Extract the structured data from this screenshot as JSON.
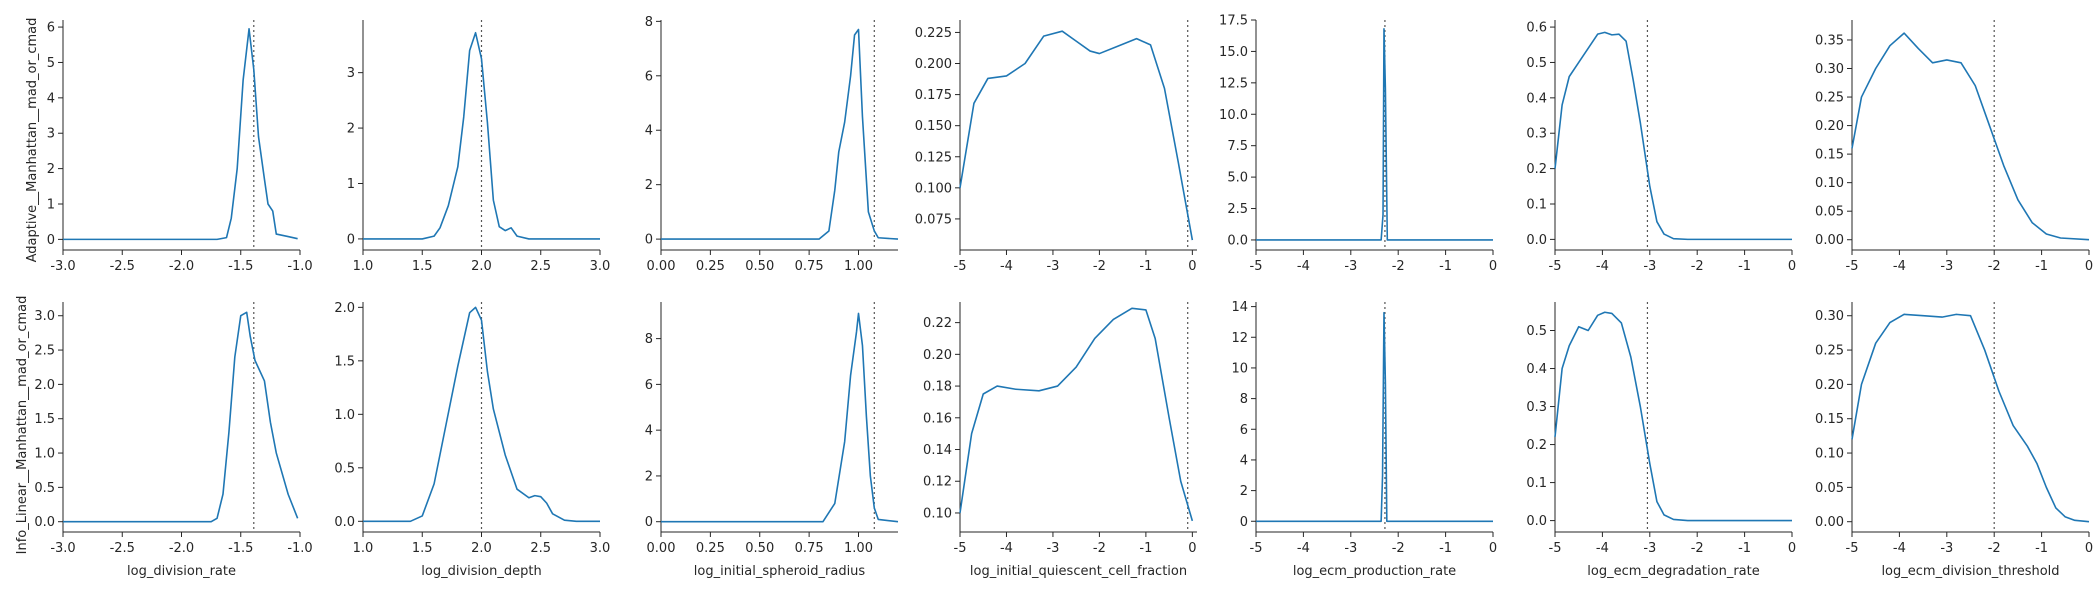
{
  "figure": {
    "line_color": "#1f77b4",
    "ref_line_color": "#555555",
    "row_labels": [
      "Adaptive__Manhattan__mad_or_cmad",
      "Info_Linear__Manhattan__mad_or_cmad"
    ]
  },
  "chart_data": [
    {
      "type": "line",
      "row": 0,
      "col": 0,
      "xlabel": "",
      "xlim": [
        -3,
        -1
      ],
      "ylim": [
        -0.3,
        6.2
      ],
      "xticks": [
        -3,
        -2.5,
        -2,
        -1.5,
        -1
      ],
      "xtick_labels": [
        "-3.0",
        "-2.5",
        "-2.0",
        "-1.5",
        "-1.0"
      ],
      "yticks": [
        0,
        1,
        2,
        3,
        4,
        5,
        6
      ],
      "ytick_labels": [
        "0",
        "1",
        "2",
        "3",
        "4",
        "5",
        "6"
      ],
      "ref_x": -1.39,
      "x": [
        -3,
        -1.7,
        -1.62,
        -1.58,
        -1.53,
        -1.48,
        -1.43,
        -1.39,
        -1.35,
        -1.3,
        -1.27,
        -1.23,
        -1.2,
        -1.1,
        -1.02
      ],
      "y": [
        0,
        0,
        0.05,
        0.6,
        2.0,
        4.5,
        5.95,
        4.8,
        2.9,
        1.7,
        1.0,
        0.8,
        0.15,
        0.08,
        0.02
      ]
    },
    {
      "type": "line",
      "row": 0,
      "col": 1,
      "xlabel": "",
      "xlim": [
        1,
        3
      ],
      "ylim": [
        -0.2,
        3.95
      ],
      "xticks": [
        1,
        1.5,
        2,
        2.5,
        3
      ],
      "xtick_labels": [
        "1.0",
        "1.5",
        "2.0",
        "2.5",
        "3.0"
      ],
      "yticks": [
        0,
        1,
        2,
        3
      ],
      "ytick_labels": [
        "0",
        "1",
        "2",
        "3"
      ],
      "ref_x": 2.0,
      "x": [
        1,
        1.5,
        1.6,
        1.65,
        1.72,
        1.8,
        1.85,
        1.9,
        1.95,
        2.0,
        2.05,
        2.1,
        2.15,
        2.2,
        2.25,
        2.3,
        2.4,
        3
      ],
      "y": [
        0,
        0,
        0.05,
        0.2,
        0.6,
        1.3,
        2.2,
        3.4,
        3.72,
        3.25,
        2.1,
        0.7,
        0.22,
        0.15,
        0.2,
        0.05,
        0,
        0
      ]
    },
    {
      "type": "line",
      "row": 0,
      "col": 2,
      "xlabel": "",
      "xlim": [
        0,
        1.2
      ],
      "ylim": [
        -0.4,
        8.05
      ],
      "xticks": [
        0,
        0.25,
        0.5,
        0.75,
        1,
        1.25
      ],
      "xtick_labels": [
        "0.00",
        "0.25",
        "0.50",
        "0.75",
        "1.00",
        ""
      ],
      "yticks": [
        0,
        2,
        4,
        6,
        8
      ],
      "ytick_labels": [
        "0",
        "2",
        "4",
        "6",
        "8"
      ],
      "ref_x": 1.08,
      "x": [
        0,
        0.8,
        0.85,
        0.88,
        0.9,
        0.93,
        0.96,
        0.98,
        1.0,
        1.02,
        1.05,
        1.08,
        1.1,
        1.2
      ],
      "y": [
        0,
        0,
        0.3,
        1.8,
        3.2,
        4.3,
        6.0,
        7.5,
        7.7,
        4.5,
        1.0,
        0.3,
        0.05,
        0
      ]
    },
    {
      "type": "line",
      "row": 0,
      "col": 3,
      "xlabel": "",
      "xlim": [
        -5,
        0.1
      ],
      "ylim": [
        0.05,
        0.235
      ],
      "xticks": [
        -5,
        -4,
        -3,
        -2,
        -1,
        0
      ],
      "xtick_labels": [
        "-5",
        "-4",
        "-3",
        "-2",
        "-1",
        "0"
      ],
      "yticks": [
        0.075,
        0.1,
        0.125,
        0.15,
        0.175,
        0.2,
        0.225
      ],
      "ytick_labels": [
        "0.075",
        "0.100",
        "0.125",
        "0.150",
        "0.175",
        "0.200",
        "0.225"
      ],
      "ref_x": -0.1,
      "x": [
        -5,
        -4.7,
        -4.4,
        -4,
        -3.6,
        -3.2,
        -2.8,
        -2.5,
        -2.2,
        -2,
        -1.6,
        -1.2,
        -0.9,
        -0.6,
        -0.3,
        0
      ],
      "y": [
        0.1,
        0.168,
        0.188,
        0.19,
        0.2,
        0.222,
        0.226,
        0.218,
        0.21,
        0.208,
        0.214,
        0.22,
        0.215,
        0.18,
        0.12,
        0.058
      ]
    },
    {
      "type": "line",
      "row": 0,
      "col": 4,
      "xlabel": "",
      "xlim": [
        -5,
        0
      ],
      "ylim": [
        -0.8,
        17.5
      ],
      "xticks": [
        -5,
        -4,
        -3,
        -2,
        -1,
        0
      ],
      "xtick_labels": [
        "-5",
        "-4",
        "-3",
        "-2",
        "-1",
        "0"
      ],
      "yticks": [
        0,
        2.5,
        5,
        7.5,
        10,
        12.5,
        15,
        17.5
      ],
      "ytick_labels": [
        "0.0",
        "2.5",
        "5.0",
        "7.5",
        "10.0",
        "12.5",
        "15.0",
        "17.5"
      ],
      "ref_x": -2.28,
      "x": [
        -5,
        -2.36,
        -2.32,
        -2.3,
        -2.27,
        -2.23,
        0
      ],
      "y": [
        0,
        0,
        2,
        16.8,
        12,
        0,
        0
      ]
    },
    {
      "type": "line",
      "row": 0,
      "col": 5,
      "xlabel": "",
      "xlim": [
        -5,
        0
      ],
      "ylim": [
        -0.03,
        0.62
      ],
      "xticks": [
        -5,
        -4,
        -3,
        -2,
        -1,
        0
      ],
      "xtick_labels": [
        "-5",
        "-4",
        "-3",
        "-2",
        "-1",
        "0"
      ],
      "yticks": [
        0,
        0.1,
        0.2,
        0.3,
        0.4,
        0.5,
        0.6
      ],
      "ytick_labels": [
        "0.0",
        "0.1",
        "0.2",
        "0.3",
        "0.4",
        "0.5",
        "0.6"
      ],
      "ref_x": -3.05,
      "x": [
        -5,
        -4.85,
        -4.7,
        -4.5,
        -4.3,
        -4.1,
        -3.95,
        -3.8,
        -3.65,
        -3.5,
        -3.35,
        -3.2,
        -3.0,
        -2.85,
        -2.7,
        -2.5,
        -2.2,
        0
      ],
      "y": [
        0.2,
        0.38,
        0.46,
        0.5,
        0.54,
        0.58,
        0.585,
        0.578,
        0.58,
        0.56,
        0.45,
        0.33,
        0.15,
        0.05,
        0.015,
        0.002,
        0,
        0
      ]
    },
    {
      "type": "line",
      "row": 0,
      "col": 6,
      "xlabel": "",
      "xlim": [
        -5,
        0
      ],
      "ylim": [
        -0.018,
        0.385
      ],
      "xticks": [
        -5,
        -4,
        -3,
        -2,
        -1,
        0
      ],
      "xtick_labels": [
        "-5",
        "-4",
        "-3",
        "-2",
        "-1",
        "0"
      ],
      "yticks": [
        0,
        0.05,
        0.1,
        0.15,
        0.2,
        0.25,
        0.3,
        0.35
      ],
      "ytick_labels": [
        "0.00",
        "0.05",
        "0.10",
        "0.15",
        "0.20",
        "0.25",
        "0.30",
        "0.35"
      ],
      "ref_x": -2.0,
      "x": [
        -5,
        -4.8,
        -4.5,
        -4.2,
        -3.9,
        -3.6,
        -3.3,
        -3.0,
        -2.7,
        -2.4,
        -2.1,
        -1.8,
        -1.5,
        -1.2,
        -0.9,
        -0.6,
        0
      ],
      "y": [
        0.16,
        0.25,
        0.3,
        0.34,
        0.362,
        0.335,
        0.31,
        0.315,
        0.31,
        0.27,
        0.2,
        0.13,
        0.07,
        0.03,
        0.01,
        0.003,
        0
      ]
    },
    {
      "type": "line",
      "row": 1,
      "col": 0,
      "xlabel": "log_division_rate",
      "xlim": [
        -3,
        -1
      ],
      "ylim": [
        -0.15,
        3.2
      ],
      "xticks": [
        -3,
        -2.5,
        -2,
        -1.5,
        -1
      ],
      "xtick_labels": [
        "-3.0",
        "-2.5",
        "-2.0",
        "-1.5",
        "-1.0"
      ],
      "yticks": [
        0,
        0.5,
        1,
        1.5,
        2,
        2.5,
        3
      ],
      "ytick_labels": [
        "0.0",
        "0.5",
        "1.0",
        "1.5",
        "2.0",
        "2.5",
        "3.0"
      ],
      "ref_x": -1.39,
      "x": [
        -3,
        -1.75,
        -1.7,
        -1.65,
        -1.6,
        -1.55,
        -1.5,
        -1.45,
        -1.42,
        -1.38,
        -1.3,
        -1.25,
        -1.2,
        -1.1,
        -1.02
      ],
      "y": [
        0,
        0,
        0.05,
        0.4,
        1.3,
        2.4,
        3.0,
        3.05,
        2.7,
        2.35,
        2.05,
        1.45,
        1.0,
        0.4,
        0.05
      ]
    },
    {
      "type": "line",
      "row": 1,
      "col": 1,
      "xlabel": "log_division_depth",
      "xlim": [
        1,
        3
      ],
      "ylim": [
        -0.1,
        2.05
      ],
      "xticks": [
        1,
        1.5,
        2,
        2.5,
        3
      ],
      "xtick_labels": [
        "1.0",
        "1.5",
        "2.0",
        "2.5",
        "3.0"
      ],
      "yticks": [
        0,
        0.5,
        1,
        1.5,
        2
      ],
      "ytick_labels": [
        "0.0",
        "0.5",
        "1.0",
        "1.5",
        "2.0"
      ],
      "ref_x": 2.0,
      "x": [
        1,
        1.4,
        1.5,
        1.6,
        1.7,
        1.8,
        1.9,
        1.95,
        2.0,
        2.05,
        2.1,
        2.2,
        2.3,
        2.4,
        2.45,
        2.5,
        2.55,
        2.6,
        2.7,
        2.8,
        3
      ],
      "y": [
        0,
        0,
        0.05,
        0.35,
        0.9,
        1.45,
        1.95,
        2.0,
        1.88,
        1.4,
        1.05,
        0.62,
        0.3,
        0.22,
        0.24,
        0.23,
        0.17,
        0.07,
        0.01,
        0,
        0
      ]
    },
    {
      "type": "line",
      "row": 1,
      "col": 2,
      "xlabel": "log_initial_spheroid_radius",
      "xlim": [
        0,
        1.2
      ],
      "ylim": [
        -0.45,
        9.6
      ],
      "xticks": [
        0,
        0.25,
        0.5,
        0.75,
        1,
        1.25
      ],
      "xtick_labels": [
        "0.00",
        "0.25",
        "0.50",
        "0.75",
        "1.00",
        ""
      ],
      "yticks": [
        0,
        2,
        4,
        6,
        8
      ],
      "ytick_labels": [
        "0",
        "2",
        "4",
        "6",
        "8"
      ],
      "ref_x": 1.08,
      "x": [
        0,
        0.82,
        0.88,
        0.93,
        0.96,
        0.99,
        1.0,
        1.02,
        1.04,
        1.06,
        1.08,
        1.1,
        1.2
      ],
      "y": [
        0,
        0,
        0.8,
        3.5,
        6.4,
        8.3,
        9.1,
        7.7,
        4.6,
        2.0,
        0.6,
        0.1,
        0
      ]
    },
    {
      "type": "line",
      "row": 1,
      "col": 3,
      "xlabel": "log_initial_quiescent_cell_fraction",
      "xlim": [
        -5,
        0.1
      ],
      "ylim": [
        0.088,
        0.233
      ],
      "xticks": [
        -5,
        -4,
        -3,
        -2,
        -1,
        0
      ],
      "xtick_labels": [
        "-5",
        "-4",
        "-3",
        "-2",
        "-1",
        "0"
      ],
      "yticks": [
        0.1,
        0.12,
        0.14,
        0.16,
        0.18,
        0.2,
        0.22
      ],
      "ytick_labels": [
        "0.10",
        "0.12",
        "0.14",
        "0.16",
        "0.18",
        "0.20",
        "0.22"
      ],
      "ref_x": -0.1,
      "x": [
        -5,
        -4.75,
        -4.5,
        -4.2,
        -3.8,
        -3.3,
        -2.9,
        -2.5,
        -2.1,
        -1.7,
        -1.3,
        -1.0,
        -0.8,
        -0.5,
        -0.25,
        0
      ],
      "y": [
        0.1,
        0.15,
        0.175,
        0.18,
        0.178,
        0.177,
        0.18,
        0.192,
        0.21,
        0.222,
        0.229,
        0.228,
        0.21,
        0.16,
        0.12,
        0.095
      ]
    },
    {
      "type": "line",
      "row": 1,
      "col": 4,
      "xlabel": "log_ecm_production_rate",
      "xlim": [
        -5,
        0
      ],
      "ylim": [
        -0.7,
        14.3
      ],
      "xticks": [
        -5,
        -4,
        -3,
        -2,
        -1,
        0
      ],
      "xtick_labels": [
        "-5",
        "-4",
        "-3",
        "-2",
        "-1",
        "0"
      ],
      "yticks": [
        0,
        2,
        4,
        6,
        8,
        10,
        12,
        14
      ],
      "ytick_labels": [
        "0",
        "2",
        "4",
        "6",
        "8",
        "10",
        "12",
        "14"
      ],
      "ref_x": -2.28,
      "x": [
        -5,
        -2.36,
        -2.33,
        -2.3,
        -2.27,
        -2.24,
        0
      ],
      "y": [
        0,
        0,
        3,
        13.6,
        9,
        0,
        0
      ]
    },
    {
      "type": "line",
      "row": 1,
      "col": 5,
      "xlabel": "log_ecm_degradation_rate",
      "xlim": [
        -5,
        0
      ],
      "ylim": [
        -0.03,
        0.575
      ],
      "xticks": [
        -5,
        -4,
        -3,
        -2,
        -1,
        0
      ],
      "xtick_labels": [
        "-5",
        "-4",
        "-3",
        "-2",
        "-1",
        "0"
      ],
      "yticks": [
        0,
        0.1,
        0.2,
        0.3,
        0.4,
        0.5
      ],
      "ytick_labels": [
        "0.0",
        "0.1",
        "0.2",
        "0.3",
        "0.4",
        "0.5"
      ],
      "ref_x": -3.05,
      "x": [
        -5,
        -4.85,
        -4.7,
        -4.5,
        -4.3,
        -4.1,
        -3.95,
        -3.8,
        -3.6,
        -3.4,
        -3.2,
        -3.0,
        -2.85,
        -2.7,
        -2.5,
        -2.2,
        0
      ],
      "y": [
        0.22,
        0.4,
        0.46,
        0.51,
        0.5,
        0.54,
        0.548,
        0.545,
        0.52,
        0.43,
        0.3,
        0.15,
        0.05,
        0.015,
        0.003,
        0,
        0
      ]
    },
    {
      "type": "line",
      "row": 1,
      "col": 6,
      "xlabel": "log_ecm_division_threshold",
      "xlim": [
        -5,
        0
      ],
      "ylim": [
        -0.015,
        0.32
      ],
      "xticks": [
        -5,
        -4,
        -3,
        -2,
        -1,
        0
      ],
      "xtick_labels": [
        "-5",
        "-4",
        "-3",
        "-2",
        "-1",
        "0"
      ],
      "yticks": [
        0,
        0.05,
        0.1,
        0.15,
        0.2,
        0.25,
        0.3
      ],
      "ytick_labels": [
        "0.00",
        "0.05",
        "0.10",
        "0.15",
        "0.20",
        "0.25",
        "0.30"
      ],
      "ref_x": -2.0,
      "x": [
        -5,
        -4.8,
        -4.5,
        -4.2,
        -3.9,
        -3.5,
        -3.1,
        -2.8,
        -2.5,
        -2.2,
        -1.9,
        -1.6,
        -1.3,
        -1.1,
        -0.9,
        -0.7,
        -0.5,
        -0.3,
        0
      ],
      "y": [
        0.12,
        0.2,
        0.26,
        0.29,
        0.302,
        0.3,
        0.298,
        0.302,
        0.3,
        0.25,
        0.19,
        0.14,
        0.11,
        0.085,
        0.05,
        0.02,
        0.007,
        0.002,
        0
      ]
    }
  ]
}
